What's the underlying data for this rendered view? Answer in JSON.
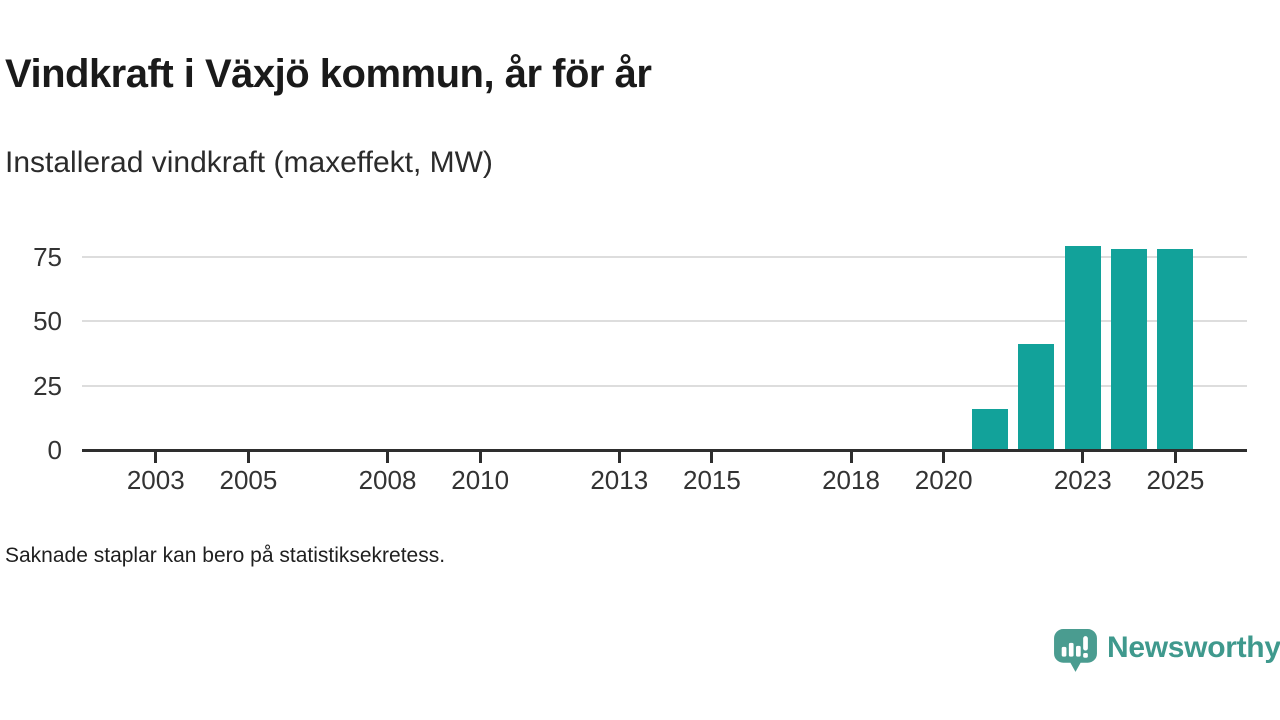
{
  "header": {
    "title": "Vindkraft i Växjö kommun, år för år",
    "subtitle": "Installerad vindkraft (maxeffekt, MW)"
  },
  "chart_data": {
    "type": "bar",
    "title": "Vindkraft i Växjö kommun, år för år",
    "subtitle": "Installerad vindkraft (maxeffekt, MW)",
    "ylabel": "MW",
    "x_range": [
      2002,
      2025
    ],
    "x_tick_labels": [
      "2003",
      "2005",
      "2008",
      "2010",
      "2013",
      "2015",
      "2018",
      "2020",
      "2023",
      "2025"
    ],
    "y_ticks": [
      0,
      25,
      50,
      75
    ],
    "ylim": [
      0,
      80
    ],
    "grid": "horizontal",
    "bar_color": "#12a29a",
    "series": [
      {
        "name": "Installerad vindkraft (maxeffekt, MW)",
        "points": [
          {
            "x": 2021,
            "y": 16
          },
          {
            "x": 2022,
            "y": 41
          },
          {
            "x": 2023,
            "y": 79
          },
          {
            "x": 2024,
            "y": 78
          },
          {
            "x": 2025,
            "y": 78
          }
        ]
      }
    ]
  },
  "footer": {
    "note": "Saknade staplar kan bero på statistiksekretess."
  },
  "logo": {
    "text": "Newsworthy",
    "text_color": "#3f998d",
    "icon_color": "#4a9c90",
    "icon": "newsworthy-bubble-barchart-icon"
  }
}
